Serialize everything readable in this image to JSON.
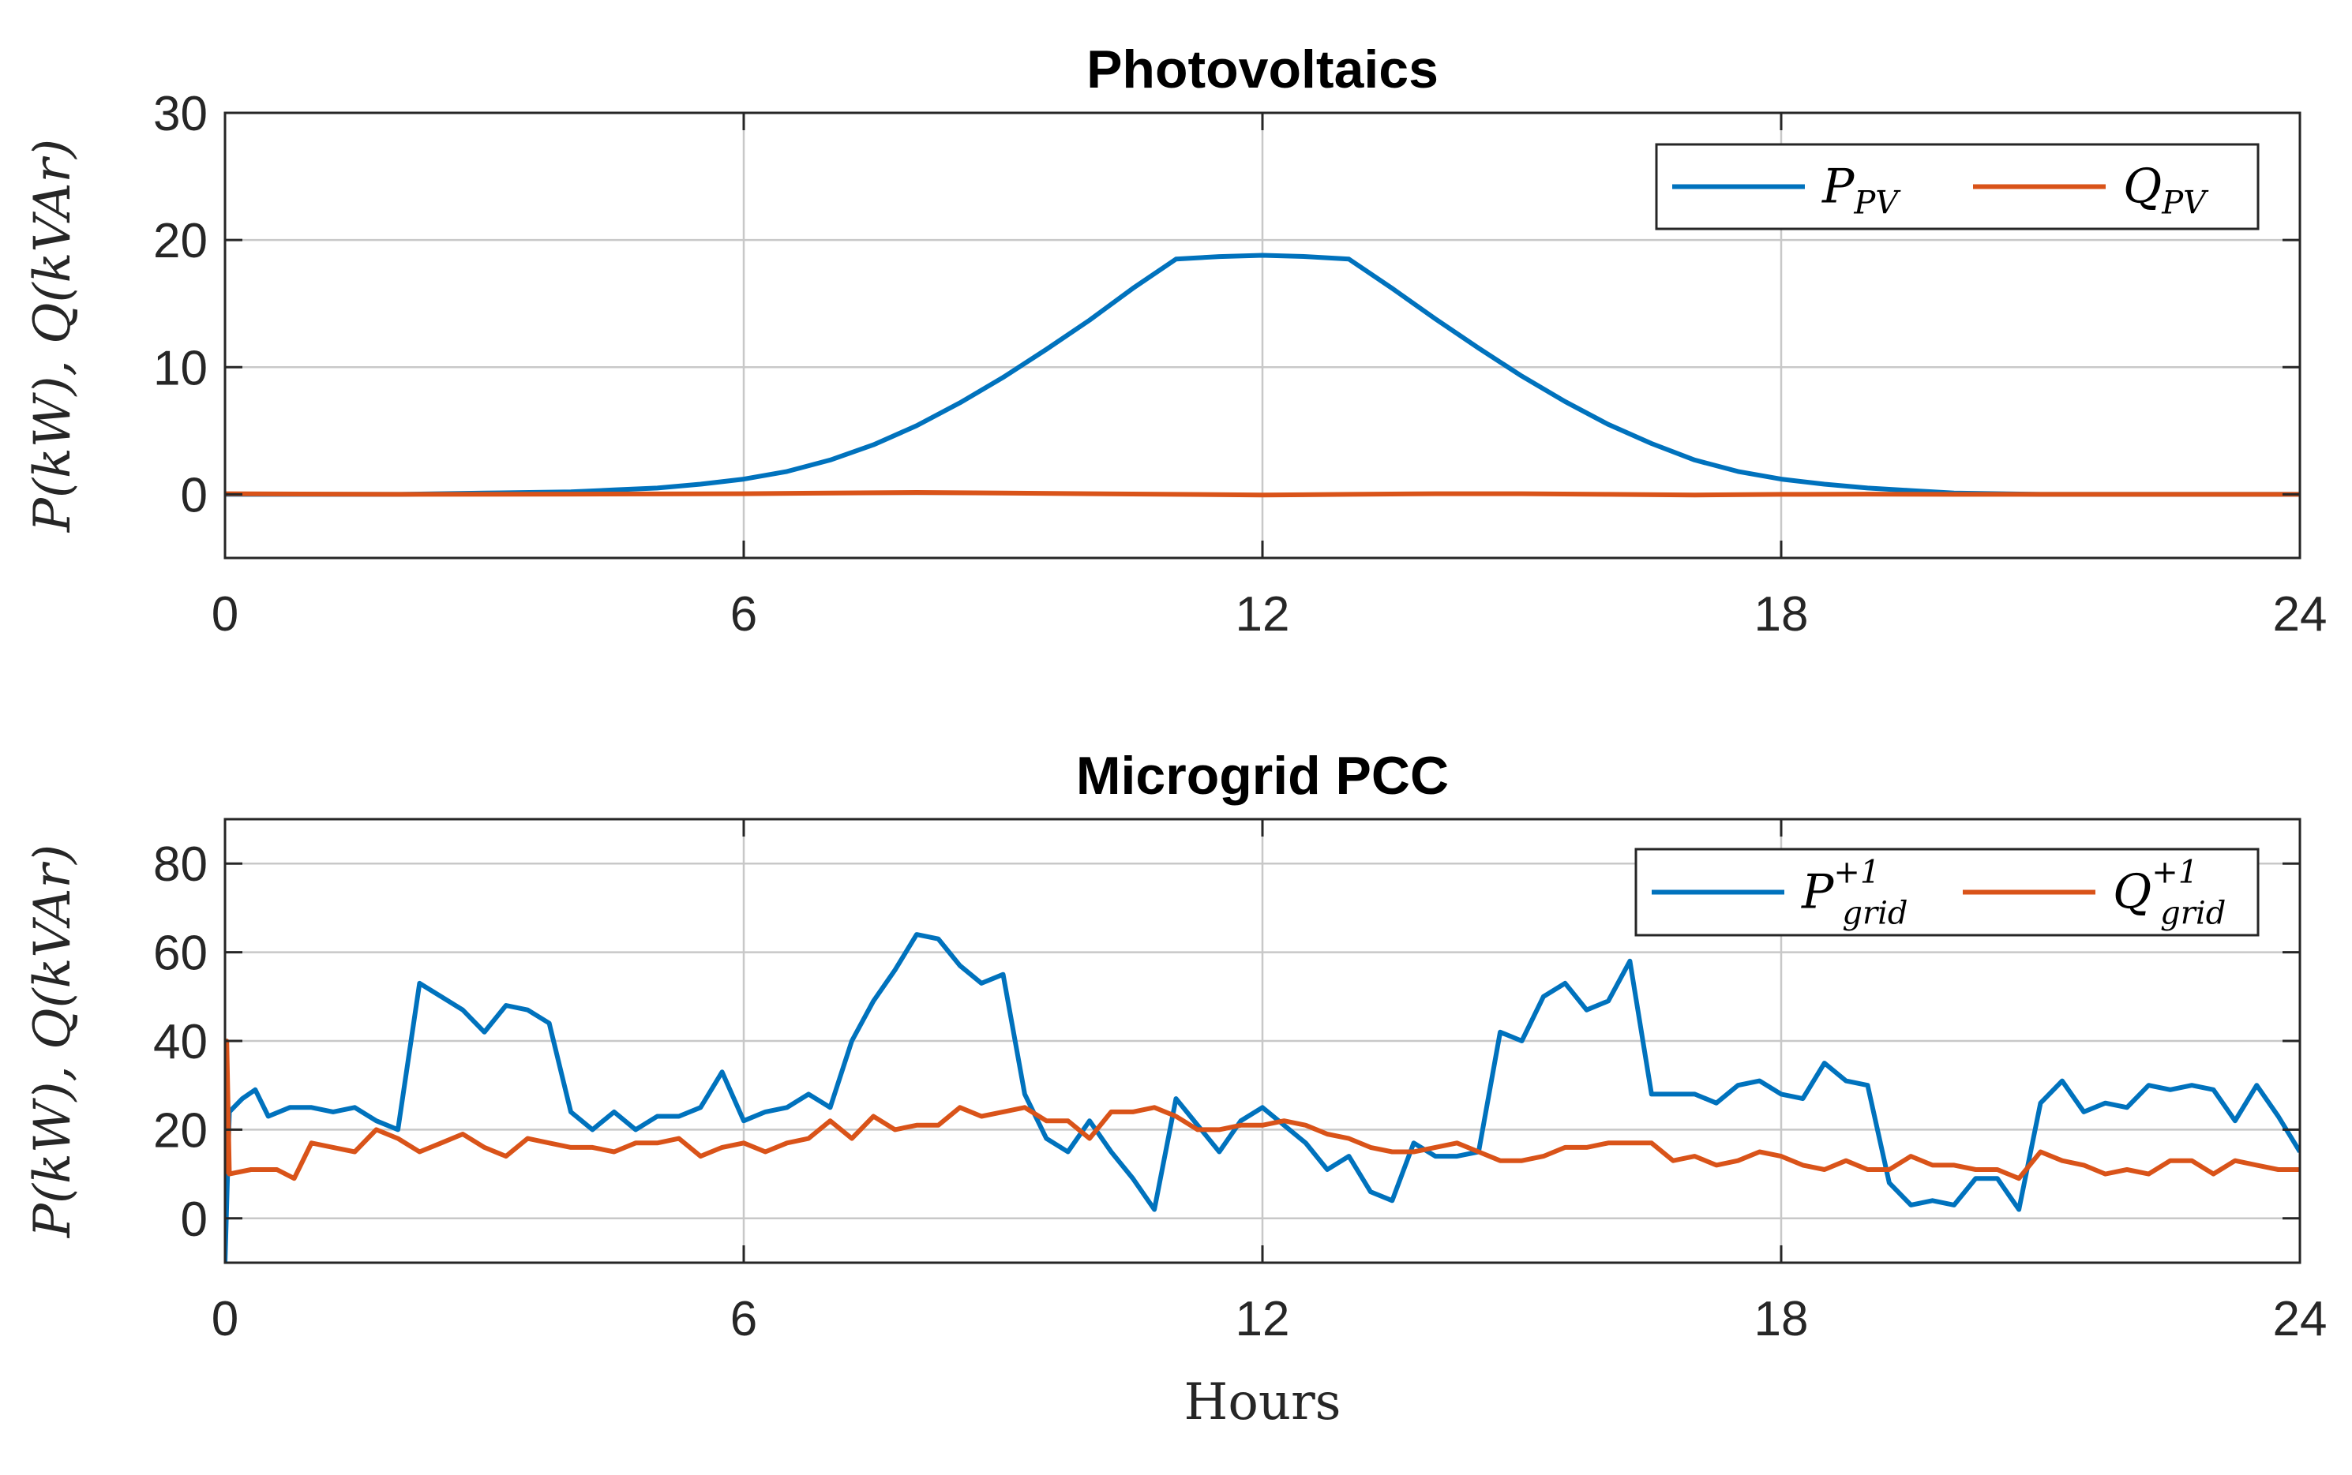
{
  "chart_data": [
    {
      "type": "line",
      "title": "Photovoltaics",
      "xlabel": "",
      "ylabel": "P(kW), Q(kVAr)",
      "xlim": [
        0,
        24
      ],
      "ylim": [
        -5,
        30
      ],
      "xticks": [
        0,
        6,
        12,
        18,
        24
      ],
      "yticks": [
        0,
        10,
        20,
        30
      ],
      "xtick_labels": [
        "0",
        "6",
        "12",
        "18",
        "24"
      ],
      "ytick_labels": [
        "0",
        "10",
        "20",
        "30"
      ],
      "grid": true,
      "legend": {
        "placement": "top-right"
      },
      "series": [
        {
          "name": "P_PV",
          "label_main": "P",
          "label_sub": "PV",
          "label_sup": "",
          "color": "#0072BD",
          "x": [
            0,
            1,
            2,
            3,
            4,
            4.5,
            5,
            5.5,
            6,
            6.5,
            7,
            7.5,
            8,
            8.5,
            9,
            9.5,
            10,
            10.5,
            11,
            11.5,
            12,
            12.5,
            13,
            13.5,
            14,
            14.5,
            15,
            15.5,
            16,
            16.5,
            17,
            17.5,
            18,
            18.5,
            19,
            19.5,
            20,
            21,
            22,
            23,
            24
          ],
          "values": [
            0,
            0,
            0,
            0.1,
            0.2,
            0.35,
            0.5,
            0.8,
            1.2,
            1.8,
            2.7,
            3.9,
            5.4,
            7.2,
            9.2,
            11.4,
            13.7,
            16.2,
            18.5,
            18.7,
            18.8,
            18.7,
            18.5,
            16.2,
            13.8,
            11.5,
            9.3,
            7.3,
            5.5,
            4.0,
            2.7,
            1.8,
            1.2,
            0.8,
            0.5,
            0.3,
            0.1,
            0,
            0,
            0,
            0
          ]
        },
        {
          "name": "Q_PV",
          "label_main": "Q",
          "label_sub": "PV",
          "label_sup": "",
          "color": "#D95319",
          "x": [
            0,
            2,
            4,
            6,
            7,
            8,
            9,
            10,
            11,
            12,
            13,
            14,
            15,
            16,
            17,
            18,
            19,
            20,
            22,
            24
          ],
          "values": [
            0.05,
            0,
            0.02,
            0.05,
            0.1,
            0.15,
            0.1,
            0.05,
            0,
            -0.05,
            0,
            0.05,
            0.05,
            0,
            -0.05,
            0,
            0.02,
            0,
            0,
            0
          ]
        }
      ]
    },
    {
      "type": "line",
      "title": "Microgrid PCC",
      "xlabel": "Hours",
      "ylabel": "P(kW), Q(kVAr)",
      "xlim": [
        0,
        24
      ],
      "ylim": [
        -10,
        90
      ],
      "xticks": [
        0,
        6,
        12,
        18,
        24
      ],
      "yticks": [
        0,
        20,
        40,
        60,
        80
      ],
      "xtick_labels": [
        "0",
        "6",
        "12",
        "18",
        "24"
      ],
      "ytick_labels": [
        "0",
        "20",
        "40",
        "60",
        "80"
      ],
      "grid": true,
      "legend": {
        "placement": "top-right"
      },
      "series": [
        {
          "name": "P_grid^+1",
          "label_main": "P",
          "label_sub": "grid",
          "label_sup": "+1",
          "color": "#0072BD",
          "x": [
            0,
            0.05,
            0.2,
            0.35,
            0.5,
            0.75,
            1.0,
            1.25,
            1.5,
            1.75,
            2.0,
            2.25,
            2.5,
            2.75,
            3.0,
            3.25,
            3.5,
            3.75,
            4.0,
            4.25,
            4.5,
            4.75,
            5.0,
            5.25,
            5.5,
            5.75,
            6.0,
            6.25,
            6.5,
            6.75,
            7.0,
            7.25,
            7.5,
            7.75,
            8.0,
            8.25,
            8.5,
            8.75,
            9.0,
            9.25,
            9.5,
            9.75,
            10.0,
            10.25,
            10.5,
            10.75,
            11.0,
            11.25,
            11.5,
            11.75,
            12.0,
            12.25,
            12.5,
            12.75,
            13.0,
            13.25,
            13.5,
            13.75,
            14.0,
            14.25,
            14.5,
            14.75,
            15.0,
            15.25,
            15.5,
            15.75,
            16.0,
            16.25,
            16.5,
            16.75,
            17.0,
            17.25,
            17.5,
            17.75,
            18.0,
            18.25,
            18.5,
            18.75,
            19.0,
            19.25,
            19.5,
            19.75,
            20.0,
            20.25,
            20.5,
            20.75,
            21.0,
            21.25,
            21.5,
            21.75,
            22.0,
            22.25,
            22.5,
            22.75,
            23.0,
            23.25,
            23.5,
            23.75,
            24.0
          ],
          "values": [
            -10,
            24,
            27,
            29,
            23,
            25,
            25,
            24,
            25,
            22,
            20,
            53,
            50,
            47,
            42,
            48,
            47,
            44,
            24,
            20,
            24,
            20,
            23,
            23,
            25,
            33,
            22,
            24,
            25,
            28,
            25,
            40,
            49,
            56,
            64,
            63,
            57,
            53,
            55,
            28,
            18,
            15,
            22,
            15,
            9,
            2,
            27,
            21,
            15,
            22,
            25,
            21,
            17,
            11,
            14,
            6,
            4,
            17,
            14,
            14,
            15,
            42,
            40,
            50,
            53,
            47,
            49,
            58,
            28,
            28,
            28,
            26,
            30,
            31,
            28,
            27,
            35,
            31,
            30,
            8,
            3,
            4,
            3,
            9,
            9,
            2,
            26,
            31,
            24,
            26,
            25,
            30,
            29,
            30,
            29,
            22,
            30,
            23,
            15
          ]
        },
        {
          "name": "Q_grid^+1",
          "label_main": "Q",
          "label_sub": "grid",
          "label_sup": "+1",
          "color": "#D95319",
          "x": [
            0,
            0.02,
            0.05,
            0.3,
            0.6,
            0.8,
            1.0,
            1.25,
            1.5,
            1.75,
            2.0,
            2.25,
            2.5,
            2.75,
            3.0,
            3.25,
            3.5,
            3.75,
            4.0,
            4.25,
            4.5,
            4.75,
            5.0,
            5.25,
            5.5,
            5.75,
            6.0,
            6.25,
            6.5,
            6.75,
            7.0,
            7.25,
            7.5,
            7.75,
            8.0,
            8.25,
            8.5,
            8.75,
            9.0,
            9.25,
            9.5,
            9.75,
            10.0,
            10.25,
            10.5,
            10.75,
            11.0,
            11.25,
            11.5,
            11.75,
            12.0,
            12.25,
            12.5,
            12.75,
            13.0,
            13.25,
            13.5,
            13.75,
            14.0,
            14.25,
            14.5,
            14.75,
            15.0,
            15.25,
            15.5,
            15.75,
            16.0,
            16.25,
            16.5,
            16.75,
            17.0,
            17.25,
            17.5,
            17.75,
            18.0,
            18.25,
            18.5,
            18.75,
            19.0,
            19.25,
            19.5,
            19.75,
            20.0,
            20.25,
            20.5,
            20.75,
            21.0,
            21.25,
            21.5,
            21.75,
            22.0,
            22.25,
            22.5,
            22.75,
            23.0,
            23.25,
            23.5,
            23.75,
            24.0
          ],
          "values": [
            10,
            40,
            10,
            11,
            11,
            9,
            17,
            16,
            15,
            20,
            18,
            15,
            17,
            19,
            16,
            14,
            18,
            17,
            16,
            16,
            15,
            17,
            17,
            18,
            14,
            16,
            17,
            15,
            17,
            18,
            22,
            18,
            23,
            20,
            21,
            21,
            25,
            23,
            24,
            25,
            22,
            22,
            18,
            24,
            24,
            25,
            23,
            20,
            20,
            21,
            21,
            22,
            21,
            19,
            18,
            16,
            15,
            15,
            16,
            17,
            15,
            13,
            13,
            14,
            16,
            16,
            17,
            17,
            17,
            13,
            14,
            12,
            13,
            15,
            14,
            12,
            11,
            13,
            11,
            11,
            14,
            12,
            12,
            11,
            11,
            9,
            15,
            13,
            12,
            10,
            11,
            10,
            13,
            13,
            10,
            13,
            12,
            11,
            11
          ]
        }
      ]
    }
  ]
}
